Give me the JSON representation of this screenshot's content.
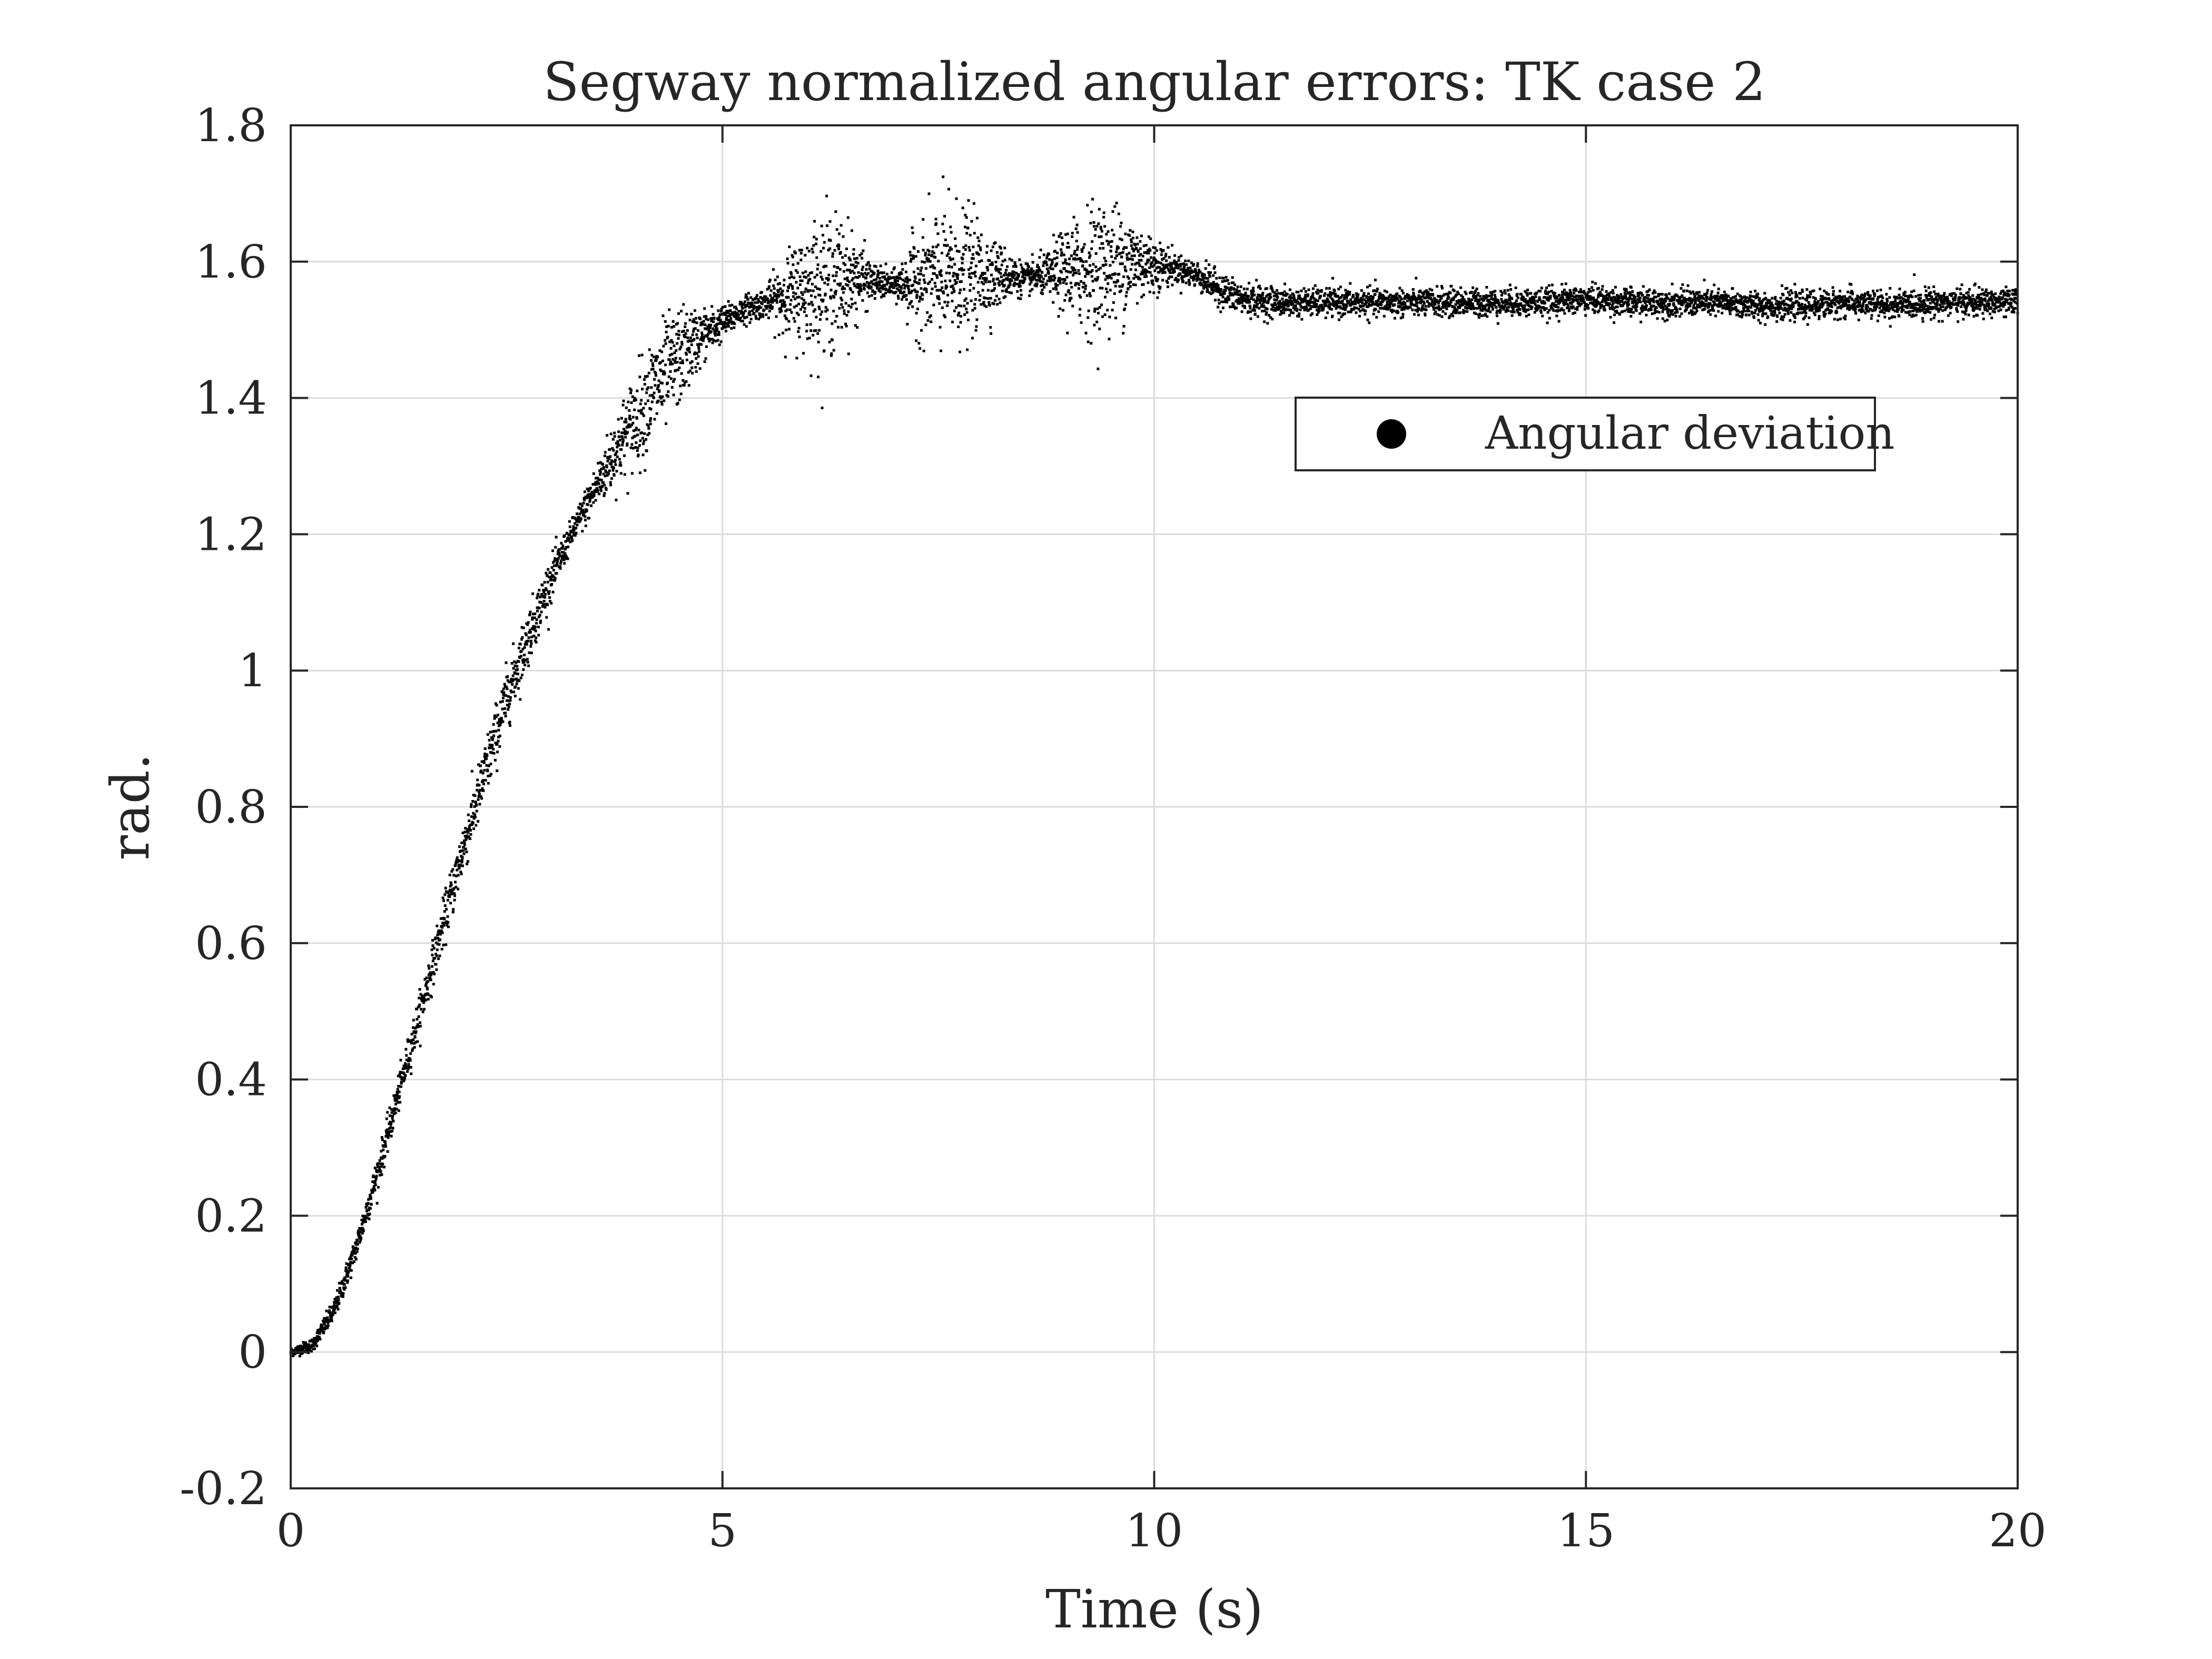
{
  "chart_data": {
    "type": "scatter",
    "title": "Segway normalized angular errors: TK case 2",
    "xlabel": "Time (s)",
    "ylabel": "rad.",
    "xlim": [
      0,
      20
    ],
    "ylim": [
      -0.2,
      1.8
    ],
    "xticks": [
      0,
      5,
      10,
      15,
      20
    ],
    "yticks": [
      -0.2,
      0,
      0.2,
      0.4,
      0.6,
      0.8,
      1,
      1.2,
      1.4,
      1.6,
      1.8
    ],
    "xtick_labels": [
      "0",
      "5",
      "10",
      "15",
      "20"
    ],
    "ytick_labels": [
      "-0.2",
      "0",
      "0.2",
      "0.4",
      "0.6",
      "0.8",
      "1",
      "1.2",
      "1.4",
      "1.6",
      "1.8"
    ],
    "grid": true,
    "legend_position": "upper-right",
    "marker_color": "#000000",
    "series": [
      {
        "name": "Angular deviation",
        "x": [
          0.0,
          0.25,
          0.5,
          0.75,
          1.0,
          1.25,
          1.5,
          1.75,
          2.0,
          2.25,
          2.5,
          2.75,
          3.0,
          3.25,
          3.5,
          3.75,
          4.0,
          4.25,
          4.5,
          4.75,
          5.0,
          5.25,
          5.5,
          5.75,
          6.0,
          6.25,
          6.5,
          6.75,
          7.0,
          7.25,
          7.5,
          7.75,
          8.0,
          8.25,
          8.5,
          8.75,
          9.0,
          9.25,
          9.5,
          9.75,
          10.0,
          10.25,
          10.5,
          10.75,
          11.0,
          11.5,
          12.0,
          12.5,
          13.0,
          13.5,
          14.0,
          14.5,
          15.0,
          15.5,
          16.0,
          16.5,
          17.0,
          17.5,
          18.0,
          18.5,
          19.0,
          19.5,
          20.0
        ],
        "y": [
          0.0,
          0.01,
          0.06,
          0.15,
          0.26,
          0.38,
          0.5,
          0.62,
          0.74,
          0.85,
          0.96,
          1.05,
          1.13,
          1.2,
          1.26,
          1.32,
          1.37,
          1.42,
          1.46,
          1.49,
          1.51,
          1.53,
          1.54,
          1.55,
          1.56,
          1.57,
          1.575,
          1.57,
          1.565,
          1.57,
          1.575,
          1.58,
          1.58,
          1.58,
          1.575,
          1.58,
          1.585,
          1.59,
          1.595,
          1.6,
          1.595,
          1.59,
          1.58,
          1.56,
          1.545,
          1.54,
          1.54,
          1.54,
          1.54,
          1.54,
          1.54,
          1.54,
          1.545,
          1.54,
          1.54,
          1.54,
          1.535,
          1.535,
          1.54,
          1.535,
          1.54,
          1.54,
          1.54
        ],
        "spread": [
          0.003,
          0.005,
          0.008,
          0.01,
          0.012,
          0.013,
          0.015,
          0.017,
          0.02,
          0.022,
          0.022,
          0.02,
          0.016,
          0.01,
          0.015,
          0.025,
          0.035,
          0.04,
          0.035,
          0.02,
          0.012,
          0.01,
          0.01,
          0.03,
          0.045,
          0.05,
          0.035,
          0.012,
          0.01,
          0.035,
          0.05,
          0.05,
          0.035,
          0.02,
          0.01,
          0.015,
          0.035,
          0.045,
          0.045,
          0.035,
          0.02,
          0.01,
          0.01,
          0.012,
          0.012,
          0.01,
          0.01,
          0.01,
          0.01,
          0.01,
          0.01,
          0.01,
          0.01,
          0.01,
          0.01,
          0.01,
          0.01,
          0.01,
          0.01,
          0.01,
          0.01,
          0.01,
          0.01
        ]
      }
    ]
  }
}
